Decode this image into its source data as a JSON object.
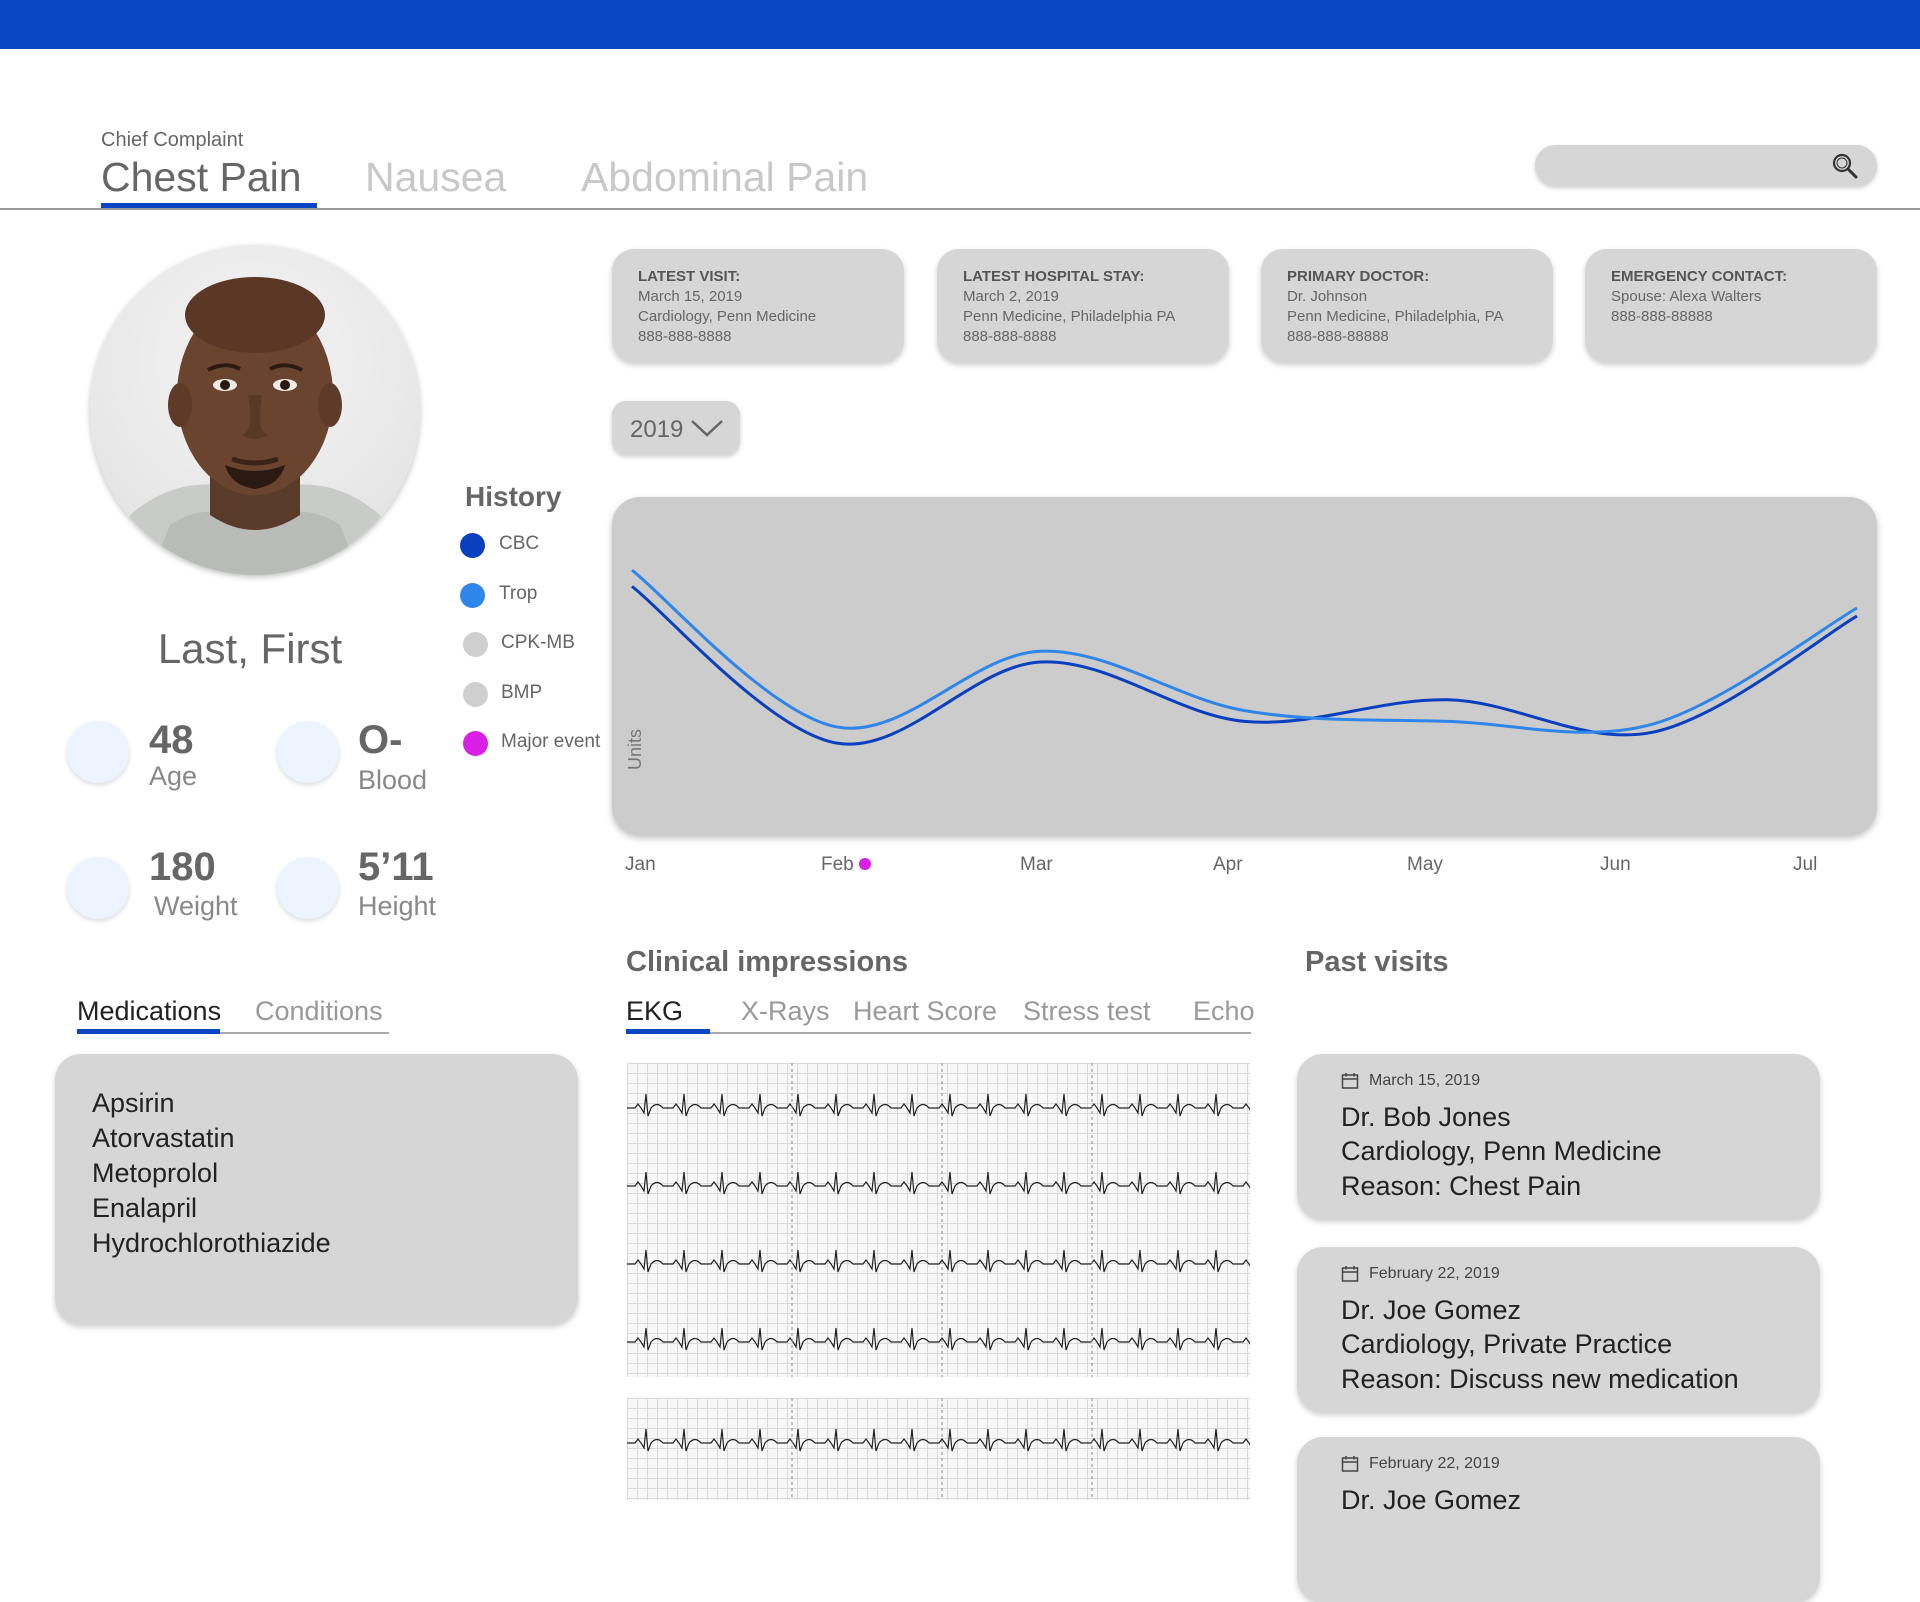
{
  "header": {
    "chief_complaint_label": "Chief Complaint",
    "tabs": [
      {
        "label": "Chest Pain",
        "active": true
      },
      {
        "label": "Nausea",
        "active": false
      },
      {
        "label": "Abdominal Pain",
        "active": false
      }
    ],
    "search": {
      "placeholder": "",
      "icon": "search-icon"
    },
    "accent_color": "#0a46c4"
  },
  "patient": {
    "name": "Last, First",
    "stats": [
      {
        "value": "48",
        "label": "Age"
      },
      {
        "value": "O-",
        "label": "Blood"
      },
      {
        "value": "180",
        "label": "Weight"
      },
      {
        "value": "5’11",
        "label": "Height"
      }
    ]
  },
  "history": {
    "title": "History",
    "legend": [
      {
        "label": "CBC",
        "color": "#0a3fc0"
      },
      {
        "label": "Trop",
        "color": "#2f86ea"
      },
      {
        "label": "CPK-MB",
        "color": "#cfcfcf"
      },
      {
        "label": "BMP",
        "color": "#cfcfcf"
      },
      {
        "label": "Major event",
        "color": "#d91ee6"
      }
    ]
  },
  "info_cards": [
    {
      "title": "LATEST VISIT:",
      "lines": [
        "March 15, 2019",
        "Cardiology, Penn Medicine",
        "888-888-8888"
      ]
    },
    {
      "title": "LATEST HOSPITAL STAY:",
      "lines": [
        "March 2, 2019",
        "Penn Medicine, Philadelphia PA",
        "888-888-8888"
      ]
    },
    {
      "title": "PRIMARY DOCTOR:",
      "lines": [
        "Dr. Johnson",
        "Penn Medicine, Philadelphia, PA",
        "888-888-88888"
      ]
    },
    {
      "title": "EMERGENCY CONTACT:",
      "lines": [
        "Spouse: Alexa Walters",
        "888-888-88888"
      ]
    }
  ],
  "year_select": {
    "value": "2019",
    "icon": "chevron-down-icon"
  },
  "chart_data": {
    "type": "line",
    "ylabel": "Units",
    "x": [
      "Jan",
      "Feb",
      "Mar",
      "Apr",
      "May",
      "Jun",
      "Jul"
    ],
    "series": [
      {
        "name": "CBC",
        "color": "#0a3fc0",
        "values": [
          78,
          20,
          50,
          28,
          36,
          24,
          67
        ]
      },
      {
        "name": "Trop",
        "color": "#2f86ea",
        "values": [
          84,
          26,
          54,
          32,
          28,
          27,
          70
        ]
      }
    ],
    "ylim": [
      0,
      100
    ],
    "events": [
      {
        "x": "Feb",
        "label": "Major event"
      }
    ],
    "grid": false,
    "legend": "left"
  },
  "clinical": {
    "title": "Clinical impressions",
    "tabs": [
      {
        "label": "EKG",
        "active": true
      },
      {
        "label": "X-Rays",
        "active": false
      },
      {
        "label": "Heart Score",
        "active": false
      },
      {
        "label": "Stress test",
        "active": false
      },
      {
        "label": "Echo",
        "active": false
      }
    ]
  },
  "meds": {
    "tabs": [
      {
        "label": "Medications",
        "active": true
      },
      {
        "label": "Conditions",
        "active": false
      }
    ],
    "items": [
      "Apsirin",
      "Atorvastatin",
      "Metoprolol",
      "Enalapril",
      "Hydrochlorothiazide"
    ]
  },
  "past_visits": {
    "title": "Past visits",
    "items": [
      {
        "date": "March 15, 2019",
        "doctor": "Dr. Bob Jones",
        "practice": "Cardiology, Penn Medicine",
        "reason": "Reason: Chest Pain"
      },
      {
        "date": "February 22, 2019",
        "doctor": "Dr. Joe Gomez",
        "practice": "Cardiology, Private Practice",
        "reason": "Reason: Discuss new medication"
      },
      {
        "date": "February 22, 2019",
        "doctor": "Dr. Joe Gomez",
        "practice": "",
        "reason": ""
      }
    ]
  }
}
